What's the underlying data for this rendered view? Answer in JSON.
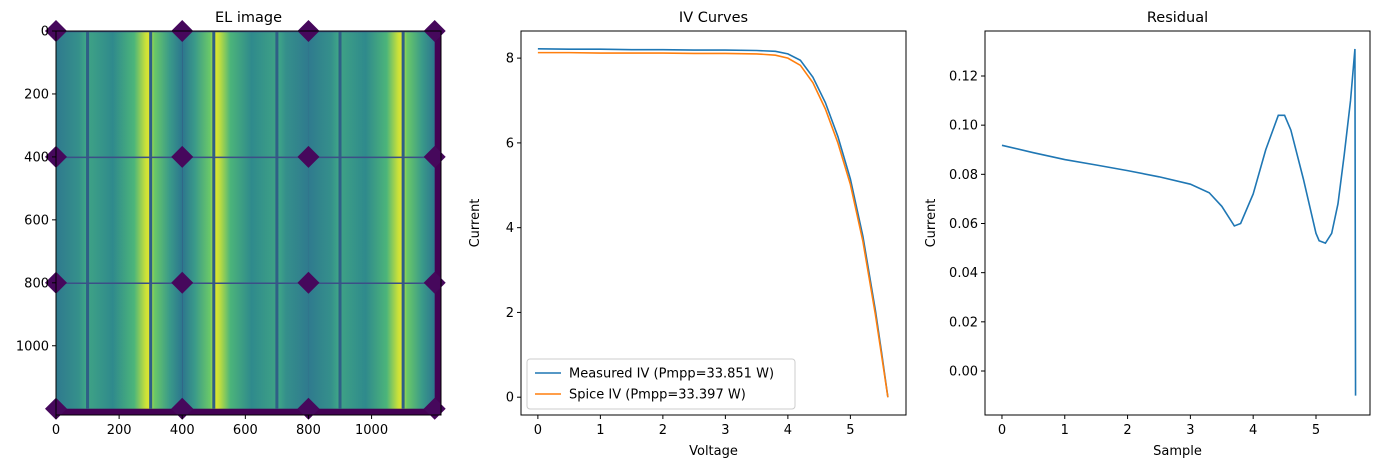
{
  "chart_data": [
    {
      "type": "image",
      "title": "EL image",
      "xlim": [
        0,
        1220
      ],
      "ylim": [
        1220,
        0
      ],
      "xticks": [
        0,
        200,
        400,
        600,
        800,
        1000
      ],
      "yticks": [
        0,
        200,
        400,
        600,
        800,
        1000
      ]
    },
    {
      "type": "line",
      "title": "IV Curves",
      "xlabel": "Voltage",
      "ylabel": "Current",
      "x": [
        0,
        0.5,
        1,
        1.5,
        2,
        2.5,
        3,
        3.5,
        3.8,
        4.0,
        4.2,
        4.4,
        4.6,
        4.8,
        5.0,
        5.2,
        5.4,
        5.5,
        5.6
      ],
      "series": [
        {
          "name": "Measured IV (Pmpp=33.851 W)",
          "color": "#1f77b4",
          "values": [
            8.22,
            8.21,
            8.21,
            8.2,
            8.2,
            8.19,
            8.19,
            8.18,
            8.16,
            8.1,
            7.95,
            7.55,
            6.95,
            6.15,
            5.15,
            3.8,
            2.05,
            1.05,
            0
          ]
        },
        {
          "name": "Spice IV (Pmpp=33.397 W)",
          "color": "#ff7f0e",
          "values": [
            8.13,
            8.13,
            8.12,
            8.12,
            8.12,
            8.11,
            8.11,
            8.1,
            8.07,
            8.0,
            7.83,
            7.42,
            6.8,
            6.0,
            5.02,
            3.68,
            1.95,
            0.98,
            0
          ]
        }
      ],
      "xlim": [
        -0.27,
        5.89
      ],
      "ylim": [
        -0.42,
        8.64
      ],
      "xticks": [
        0,
        1,
        2,
        3,
        4,
        5
      ],
      "yticks": [
        0,
        2,
        4,
        6,
        8
      ],
      "legend": "lower left"
    },
    {
      "type": "line",
      "title": "Residual",
      "xlabel": "Sample",
      "ylabel": "Current",
      "x": [
        0,
        0.5,
        1,
        1.5,
        2,
        2.5,
        3,
        3.3,
        3.5,
        3.7,
        3.8,
        4.0,
        4.2,
        4.4,
        4.5,
        4.6,
        4.8,
        5.0,
        5.05,
        5.15,
        5.25,
        5.35,
        5.45,
        5.55,
        5.62,
        5.63
      ],
      "series": [
        {
          "name": null,
          "color": "#1f77b4",
          "values": [
            0.0918,
            0.0888,
            0.086,
            0.0838,
            0.0815,
            0.079,
            0.076,
            0.0725,
            0.067,
            0.059,
            0.06,
            0.072,
            0.09,
            0.104,
            0.104,
            0.098,
            0.078,
            0.056,
            0.053,
            0.052,
            0.056,
            0.068,
            0.088,
            0.11,
            0.131,
            -0.01
          ]
        }
      ],
      "xlim": [
        -0.27,
        5.86
      ],
      "ylim": [
        -0.0179,
        0.1383
      ],
      "xticks": [
        0,
        1,
        2,
        3,
        4,
        5
      ],
      "yticks": [
        {
          "value": 0,
          "label": "0.00"
        },
        0.02,
        0.04,
        0.06,
        0.08,
        {
          "value": 0.1,
          "label": "0.10"
        },
        0.12
      ]
    }
  ]
}
